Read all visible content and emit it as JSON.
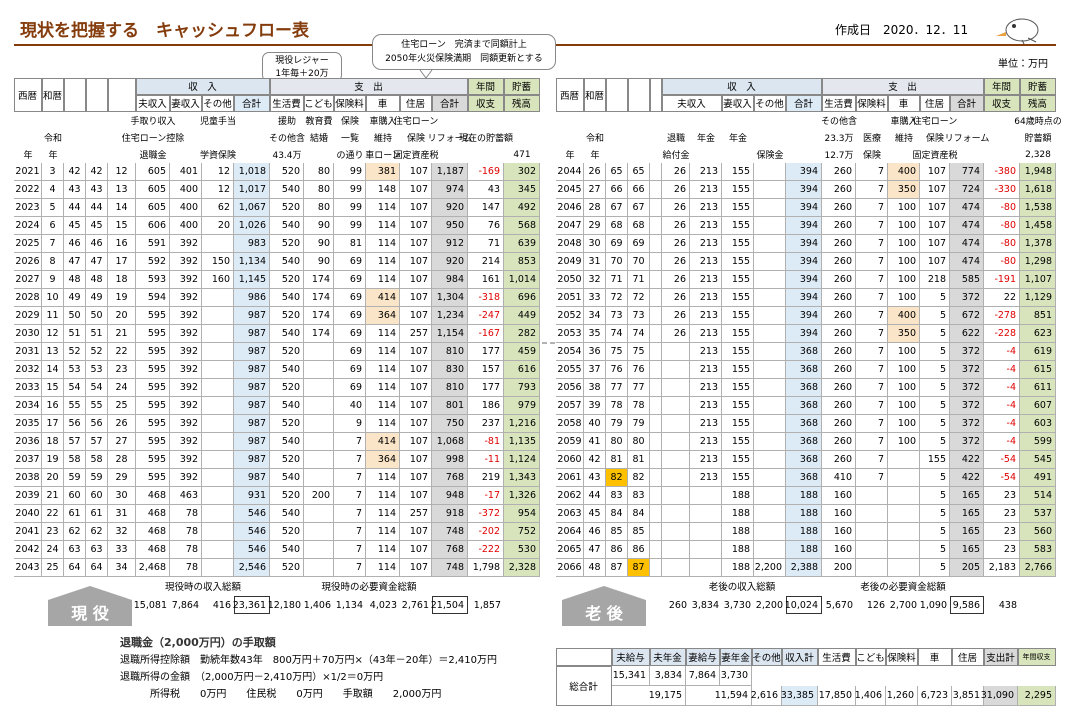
{
  "header": {
    "title": "現状を把握する　キャッシュフロー表",
    "date": "作成日　2020．12．11",
    "unit": "単位：万円"
  },
  "callouts": [
    [
      "現役レジャー",
      "1年毎＋20万"
    ],
    [
      "住宅ローン　完済まで同額計上",
      "2050年火災保険満期　同額更新とする"
    ]
  ],
  "left_table": {
    "group_headers": [
      "西暦",
      "和暦",
      "収　入",
      "支　出",
      "年間",
      "貯蓄"
    ],
    "column_headers": [
      "夫収入",
      "妻収入",
      "その他",
      "合計",
      "生活費",
      "こども",
      "保険料",
      "車",
      "住居",
      "合計",
      "収支",
      "残高"
    ],
    "notes": [
      [
        null,
        null,
        null,
        null,
        null,
        "手取り収入",
        null,
        "児童手当",
        null,
        "援助",
        "教育費",
        "保険",
        "車購入",
        "住宅ローン",
        null,
        null,
        null
      ],
      [
        null,
        "令和",
        null,
        null,
        null,
        "住宅ローン控除",
        null,
        null,
        null,
        "その他含",
        "結婚",
        "一覧",
        "維持",
        "保険",
        "リフォーム",
        "現在の貯蓄額",
        null
      ],
      [
        "年",
        "年",
        null,
        null,
        null,
        "退職金",
        null,
        "学資保険",
        null,
        "43.4万",
        null,
        "の通り",
        "車ローン",
        "固定資産税",
        null,
        null,
        471
      ]
    ],
    "rows": [
      [
        2021,
        3,
        42,
        42,
        12,
        605,
        401,
        12,
        "1,018",
        520,
        80,
        99,
        381,
        107,
        "1,187",
        -169,
        302
      ],
      [
        2022,
        4,
        43,
        43,
        13,
        605,
        400,
        12,
        "1,017",
        540,
        80,
        99,
        148,
        107,
        974,
        43,
        345
      ],
      [
        2023,
        5,
        44,
        44,
        14,
        605,
        400,
        62,
        "1,067",
        520,
        80,
        99,
        114,
        107,
        920,
        147,
        492
      ],
      [
        2024,
        6,
        45,
        45,
        15,
        606,
        400,
        20,
        "1,026",
        540,
        90,
        99,
        114,
        107,
        950,
        76,
        568
      ],
      [
        2025,
        7,
        46,
        46,
        16,
        591,
        392,
        null,
        983,
        520,
        90,
        81,
        114,
        107,
        912,
        71,
        639
      ],
      [
        2026,
        8,
        47,
        47,
        17,
        592,
        392,
        150,
        "1,134",
        540,
        90,
        69,
        114,
        107,
        920,
        214,
        853
      ],
      [
        2027,
        9,
        48,
        48,
        18,
        593,
        392,
        160,
        "1,145",
        520,
        174,
        69,
        114,
        107,
        984,
        161,
        "1,014"
      ],
      [
        2028,
        10,
        49,
        49,
        19,
        594,
        392,
        null,
        986,
        540,
        174,
        69,
        414,
        107,
        "1,304",
        -318,
        696
      ],
      [
        2029,
        11,
        50,
        50,
        20,
        595,
        392,
        null,
        987,
        520,
        174,
        69,
        364,
        107,
        "1,234",
        -247,
        449
      ],
      [
        2030,
        12,
        51,
        51,
        21,
        595,
        392,
        null,
        987,
        540,
        174,
        69,
        114,
        257,
        "1,154",
        -167,
        282
      ],
      [
        2031,
        13,
        52,
        52,
        22,
        595,
        392,
        null,
        987,
        520,
        null,
        69,
        114,
        107,
        810,
        177,
        459
      ],
      [
        2032,
        14,
        53,
        53,
        23,
        595,
        392,
        null,
        987,
        540,
        null,
        69,
        114,
        107,
        830,
        157,
        616
      ],
      [
        2033,
        15,
        54,
        54,
        24,
        595,
        392,
        null,
        987,
        520,
        null,
        69,
        114,
        107,
        810,
        177,
        793
      ],
      [
        2034,
        16,
        55,
        55,
        25,
        595,
        392,
        null,
        987,
        540,
        null,
        40,
        114,
        107,
        801,
        186,
        979
      ],
      [
        2035,
        17,
        56,
        56,
        26,
        595,
        392,
        null,
        987,
        520,
        null,
        9,
        114,
        107,
        750,
        237,
        "1,216"
      ],
      [
        2036,
        18,
        57,
        57,
        27,
        595,
        392,
        null,
        987,
        540,
        null,
        7,
        414,
        107,
        "1,068",
        -81,
        "1,135"
      ],
      [
        2037,
        19,
        58,
        58,
        28,
        595,
        392,
        null,
        987,
        520,
        null,
        7,
        364,
        107,
        998,
        -11,
        "1,124"
      ],
      [
        2038,
        20,
        59,
        59,
        29,
        595,
        392,
        null,
        987,
        540,
        null,
        7,
        114,
        107,
        768,
        219,
        "1,343"
      ],
      [
        2039,
        21,
        60,
        60,
        30,
        468,
        463,
        null,
        931,
        520,
        200,
        7,
        114,
        107,
        948,
        -17,
        "1,326"
      ],
      [
        2040,
        22,
        61,
        61,
        31,
        468,
        78,
        null,
        546,
        540,
        null,
        7,
        114,
        257,
        918,
        -372,
        954
      ],
      [
        2041,
        23,
        62,
        62,
        32,
        468,
        78,
        null,
        546,
        520,
        null,
        7,
        114,
        107,
        748,
        -202,
        752
      ],
      [
        2042,
        24,
        63,
        63,
        33,
        468,
        78,
        null,
        546,
        540,
        null,
        7,
        114,
        107,
        768,
        -222,
        530
      ],
      [
        2043,
        25,
        64,
        64,
        34,
        "2,468",
        78,
        null,
        "2,546",
        520,
        null,
        7,
        114,
        107,
        748,
        "1,798",
        "2,328"
      ]
    ],
    "summary_labels": [
      "現役時の収入総額",
      "現役時の必要資金総額"
    ],
    "summary_values": [
      "15,081",
      "7,864",
      416,
      "23,361",
      "12,180",
      "1,406",
      "1,134",
      "4,023",
      "2,761",
      "21,504",
      "1,857"
    ],
    "stage": "現 役"
  },
  "right_table": {
    "group_headers": [
      "西暦",
      "和暦",
      "収　入",
      "支　出",
      "年間",
      "貯蓄"
    ],
    "column_headers": [
      "夫収入",
      "妻収入",
      "その他",
      "合計",
      "生活費",
      "保険料",
      "車",
      "住居",
      "合計",
      "収支",
      "残高"
    ],
    "notes": [
      [
        null,
        null,
        null,
        null,
        null,
        null,
        null,
        null,
        null,
        null,
        "その他含",
        null,
        "車購入",
        "住宅ローン",
        null,
        null,
        "64歳時点の"
      ],
      [
        null,
        "令和",
        null,
        null,
        null,
        "退職",
        "年金",
        "年金",
        null,
        null,
        "23.3万",
        "医療",
        "維持",
        "保険",
        "リフォーム",
        null,
        "貯蓄額"
      ],
      [
        "年",
        "年",
        null,
        null,
        null,
        "給付金",
        null,
        null,
        "保険金",
        null,
        "12.7万",
        "保険",
        null,
        "固定資産税",
        null,
        null,
        "2,328"
      ]
    ],
    "rows": [
      [
        2044,
        26,
        65,
        65,
        null,
        26,
        213,
        155,
        null,
        394,
        260,
        7,
        400,
        107,
        774,
        -380,
        "1,948"
      ],
      [
        2045,
        27,
        66,
        66,
        null,
        26,
        213,
        155,
        null,
        394,
        260,
        7,
        350,
        107,
        724,
        -330,
        "1,618"
      ],
      [
        2046,
        28,
        67,
        67,
        null,
        26,
        213,
        155,
        null,
        394,
        260,
        7,
        100,
        107,
        474,
        -80,
        "1,538"
      ],
      [
        2047,
        29,
        68,
        68,
        null,
        26,
        213,
        155,
        null,
        394,
        260,
        7,
        100,
        107,
        474,
        -80,
        "1,458"
      ],
      [
        2048,
        30,
        69,
        69,
        null,
        26,
        213,
        155,
        null,
        394,
        260,
        7,
        100,
        107,
        474,
        -80,
        "1,378"
      ],
      [
        2049,
        31,
        70,
        70,
        null,
        26,
        213,
        155,
        null,
        394,
        260,
        7,
        100,
        107,
        474,
        -80,
        "1,298"
      ],
      [
        2050,
        32,
        71,
        71,
        null,
        26,
        213,
        155,
        null,
        394,
        260,
        7,
        100,
        218,
        585,
        -191,
        "1,107"
      ],
      [
        2051,
        33,
        72,
        72,
        null,
        26,
        213,
        155,
        null,
        394,
        260,
        7,
        100,
        5,
        372,
        22,
        "1,129"
      ],
      [
        2052,
        34,
        73,
        73,
        null,
        26,
        213,
        155,
        null,
        394,
        260,
        7,
        400,
        5,
        672,
        -278,
        851
      ],
      [
        2053,
        35,
        74,
        74,
        null,
        26,
        213,
        155,
        null,
        394,
        260,
        7,
        350,
        5,
        622,
        -228,
        623
      ],
      [
        2054,
        36,
        75,
        75,
        null,
        null,
        213,
        155,
        null,
        368,
        260,
        7,
        100,
        5,
        372,
        -4,
        619
      ],
      [
        2055,
        37,
        76,
        76,
        null,
        null,
        213,
        155,
        null,
        368,
        260,
        7,
        100,
        5,
        372,
        -4,
        615
      ],
      [
        2056,
        38,
        77,
        77,
        null,
        null,
        213,
        155,
        null,
        368,
        260,
        7,
        100,
        5,
        372,
        -4,
        611
      ],
      [
        2057,
        39,
        78,
        78,
        null,
        null,
        213,
        155,
        null,
        368,
        260,
        7,
        100,
        5,
        372,
        -4,
        607
      ],
      [
        2058,
        40,
        79,
        79,
        null,
        null,
        213,
        155,
        null,
        368,
        260,
        7,
        100,
        5,
        372,
        -4,
        603
      ],
      [
        2059,
        41,
        80,
        80,
        null,
        null,
        213,
        155,
        null,
        368,
        260,
        7,
        100,
        5,
        372,
        -4,
        599
      ],
      [
        2060,
        42,
        81,
        81,
        null,
        null,
        213,
        155,
        null,
        368,
        260,
        7,
        null,
        155,
        422,
        -54,
        545
      ],
      [
        2061,
        43,
        82,
        82,
        null,
        null,
        213,
        155,
        null,
        368,
        410,
        7,
        null,
        5,
        422,
        -54,
        491
      ],
      [
        2062,
        44,
        83,
        83,
        null,
        null,
        null,
        188,
        null,
        188,
        160,
        null,
        null,
        5,
        165,
        23,
        514
      ],
      [
        2063,
        45,
        84,
        84,
        null,
        null,
        null,
        188,
        null,
        188,
        160,
        null,
        null,
        5,
        165,
        23,
        537
      ],
      [
        2064,
        46,
        85,
        85,
        null,
        null,
        null,
        188,
        null,
        188,
        160,
        null,
        null,
        5,
        165,
        23,
        560
      ],
      [
        2065,
        47,
        86,
        86,
        null,
        null,
        null,
        188,
        null,
        188,
        160,
        null,
        null,
        5,
        165,
        23,
        583
      ],
      [
        2066,
        48,
        87,
        87,
        null,
        null,
        null,
        188,
        "2,200",
        "2,388",
        200,
        null,
        null,
        5,
        205,
        "2,183",
        "2,766"
      ]
    ],
    "summary_labels": [
      "老後の収入総額",
      "老後の必要資金総額"
    ],
    "summary_values": [
      260,
      "3,834",
      "3,730",
      "2,200",
      "10,024",
      "5,670",
      126,
      "2,700",
      "1,090",
      "9,586",
      438
    ],
    "stage": "老 後"
  },
  "retirement_note": {
    "title": "退職金（2,000万円）の手取額",
    "lines": [
      "退職所得控除額　勤続年数43年　800万円＋70万円×（43年－20年）＝2,410万円",
      "退職所得の金額　（2,000万円－2,410万円）×1/2＝0万円",
      "所得税　　0万円　　住民税　　0万円　　手取額　　2,000万円"
    ]
  },
  "totals": {
    "label": "総合計",
    "headers": [
      "夫給与",
      "夫年金",
      "妻給与",
      "妻年金",
      "その他",
      "収入計",
      "生活費",
      "こども",
      "保険料",
      "車",
      "住居",
      "支出計",
      "年間収支"
    ],
    "row1": [
      "15,341",
      "3,834",
      "7,864",
      "3,730"
    ],
    "row2": [
      "19,175",
      "11,594",
      "2,616",
      "33,385",
      "17,850",
      "1,406",
      "1,260",
      "6,723",
      "3,851",
      "31,090",
      "2,295"
    ]
  }
}
